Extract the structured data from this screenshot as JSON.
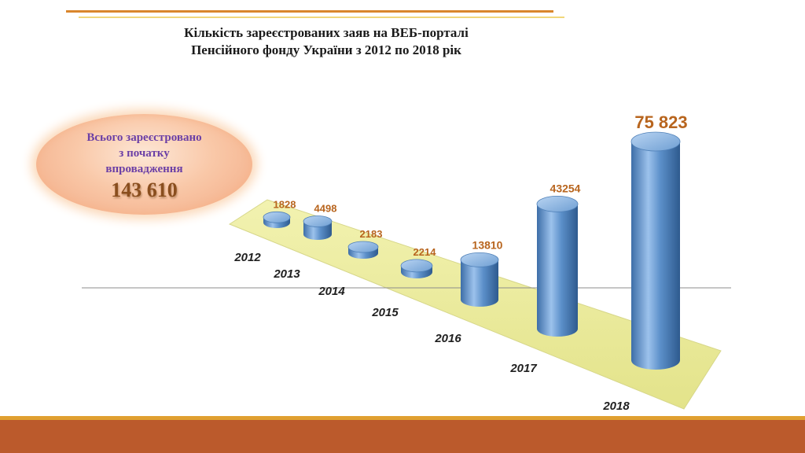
{
  "title_line1": "Кількість зареєстрованих заяв на ВЕБ-порталі",
  "title_line2": "Пенсійного фонду України з 2012 по 2018 рік",
  "total": {
    "label_line1": "Всього зареєстровано",
    "label_line2": "з початку",
    "label_line3": "впровадження",
    "value": "143 610"
  },
  "chart_data": {
    "type": "bar",
    "categories": [
      "2012",
      "2013",
      "2014",
      "2015",
      "2016",
      "2017",
      "2018"
    ],
    "values": [
      1828,
      4498,
      2183,
      2214,
      13810,
      43254,
      75823
    ],
    "value_labels": [
      "1828",
      "4498",
      "2183",
      "2214",
      "13810",
      "43254",
      "75 823"
    ],
    "bar_color": "#5b8fc9",
    "label_color": "#b8651e",
    "floor_color": "#ecec9a"
  }
}
